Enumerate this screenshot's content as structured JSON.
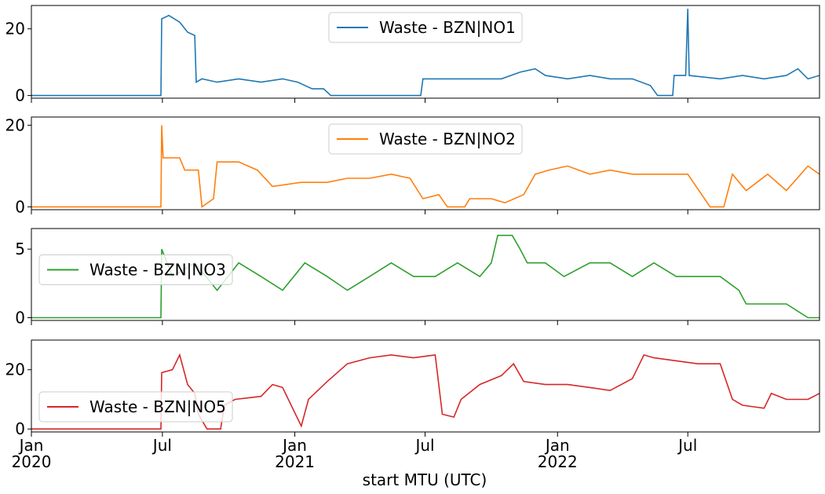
{
  "chart_data": {
    "type": "line",
    "xlabel": "start MTU (UTC)",
    "xlim": [
      "2020-01-01",
      "2022-12-31"
    ],
    "x_ticks": [
      {
        "date": "2020-01-01",
        "label": "Jan",
        "year": "2020"
      },
      {
        "date": "2020-07-01",
        "label": "Jul",
        "year": ""
      },
      {
        "date": "2021-01-01",
        "label": "Jan",
        "year": "2021"
      },
      {
        "date": "2021-07-01",
        "label": "Jul",
        "year": ""
      },
      {
        "date": "2022-01-01",
        "label": "Jan",
        "year": "2022"
      },
      {
        "date": "2022-07-01",
        "label": "Jul",
        "year": ""
      }
    ],
    "grid": false,
    "panels": [
      {
        "series_name": "Waste - BZN|NO1",
        "color": "#1f77b4",
        "ylim": [
          -0.8,
          27
        ],
        "yticks": [
          0,
          20
        ],
        "legend_loc": "upper center",
        "points": [
          [
            "2020-01-01",
            0
          ],
          [
            "2020-06-29",
            0
          ],
          [
            "2020-06-30",
            23
          ],
          [
            "2020-07-10",
            24
          ],
          [
            "2020-07-25",
            22
          ],
          [
            "2020-08-05",
            19
          ],
          [
            "2020-08-15",
            18
          ],
          [
            "2020-08-17",
            4
          ],
          [
            "2020-08-25",
            5
          ],
          [
            "2020-09-15",
            4
          ],
          [
            "2020-10-15",
            5
          ],
          [
            "2020-11-15",
            4
          ],
          [
            "2020-12-15",
            5
          ],
          [
            "2021-01-05",
            4
          ],
          [
            "2021-01-25",
            2
          ],
          [
            "2021-02-10",
            2
          ],
          [
            "2021-02-20",
            0
          ],
          [
            "2021-06-25",
            0
          ],
          [
            "2021-06-28",
            5
          ],
          [
            "2021-08-15",
            5
          ],
          [
            "2021-10-15",
            5
          ],
          [
            "2021-11-10",
            7
          ],
          [
            "2021-12-01",
            8
          ],
          [
            "2021-12-15",
            6
          ],
          [
            "2022-01-15",
            5
          ],
          [
            "2022-02-15",
            6
          ],
          [
            "2022-03-15",
            5
          ],
          [
            "2022-04-15",
            5
          ],
          [
            "2022-05-10",
            3
          ],
          [
            "2022-05-20",
            0
          ],
          [
            "2022-06-10",
            0
          ],
          [
            "2022-06-12",
            6
          ],
          [
            "2022-06-28",
            6
          ],
          [
            "2022-07-01",
            26
          ],
          [
            "2022-07-03",
            6
          ],
          [
            "2022-08-15",
            5
          ],
          [
            "2022-09-15",
            6
          ],
          [
            "2022-10-15",
            5
          ],
          [
            "2022-11-15",
            6
          ],
          [
            "2022-12-01",
            8
          ],
          [
            "2022-12-15",
            5
          ],
          [
            "2022-12-31",
            6
          ]
        ]
      },
      {
        "series_name": "Waste - BZN|NO2",
        "color": "#ff7f0e",
        "ylim": [
          -0.7,
          22
        ],
        "yticks": [
          0,
          20
        ],
        "legend_loc": "upper center",
        "points": [
          [
            "2020-01-01",
            0
          ],
          [
            "2020-06-29",
            0
          ],
          [
            "2020-06-30",
            20
          ],
          [
            "2020-07-02",
            12
          ],
          [
            "2020-07-25",
            12
          ],
          [
            "2020-08-01",
            9
          ],
          [
            "2020-08-20",
            9
          ],
          [
            "2020-08-25",
            0
          ],
          [
            "2020-09-10",
            2
          ],
          [
            "2020-09-15",
            11
          ],
          [
            "2020-10-15",
            11
          ],
          [
            "2020-11-10",
            9
          ],
          [
            "2020-12-01",
            5
          ],
          [
            "2021-01-10",
            6
          ],
          [
            "2021-02-15",
            6
          ],
          [
            "2021-03-15",
            7
          ],
          [
            "2021-04-15",
            7
          ],
          [
            "2021-05-15",
            8
          ],
          [
            "2021-06-10",
            7
          ],
          [
            "2021-06-28",
            2
          ],
          [
            "2021-07-20",
            3
          ],
          [
            "2021-08-01",
            0
          ],
          [
            "2021-08-25",
            0
          ],
          [
            "2021-09-01",
            2
          ],
          [
            "2021-10-01",
            2
          ],
          [
            "2021-10-20",
            1
          ],
          [
            "2021-11-15",
            3
          ],
          [
            "2021-12-01",
            8
          ],
          [
            "2021-12-20",
            9
          ],
          [
            "2022-01-15",
            10
          ],
          [
            "2022-02-15",
            8
          ],
          [
            "2022-03-15",
            9
          ],
          [
            "2022-04-15",
            8
          ],
          [
            "2022-05-15",
            8
          ],
          [
            "2022-06-15",
            8
          ],
          [
            "2022-07-01",
            8
          ],
          [
            "2022-08-01",
            0
          ],
          [
            "2022-08-20",
            0
          ],
          [
            "2022-09-01",
            8
          ],
          [
            "2022-09-20",
            4
          ],
          [
            "2022-10-20",
            8
          ],
          [
            "2022-11-15",
            4
          ],
          [
            "2022-12-15",
            10
          ],
          [
            "2022-12-31",
            8
          ]
        ]
      },
      {
        "series_name": "Waste - BZN|NO3",
        "color": "#2ca02c",
        "ylim": [
          -0.2,
          6.5
        ],
        "yticks": [
          0,
          5
        ],
        "legend_loc": "center left",
        "points": [
          [
            "2020-01-01",
            0
          ],
          [
            "2020-06-29",
            0
          ],
          [
            "2020-06-30",
            5
          ],
          [
            "2020-07-15",
            3
          ],
          [
            "2020-08-15",
            4
          ],
          [
            "2020-09-15",
            2
          ],
          [
            "2020-10-15",
            4
          ],
          [
            "2020-11-15",
            3
          ],
          [
            "2020-12-15",
            2
          ],
          [
            "2021-01-15",
            4
          ],
          [
            "2021-02-15",
            3
          ],
          [
            "2021-03-15",
            2
          ],
          [
            "2021-04-15",
            3
          ],
          [
            "2021-05-15",
            4
          ],
          [
            "2021-06-15",
            3
          ],
          [
            "2021-07-15",
            3
          ],
          [
            "2021-08-15",
            4
          ],
          [
            "2021-09-15",
            3
          ],
          [
            "2021-10-01",
            4
          ],
          [
            "2021-10-10",
            6
          ],
          [
            "2021-10-30",
            6
          ],
          [
            "2021-11-10",
            5
          ],
          [
            "2021-11-20",
            4
          ],
          [
            "2021-12-15",
            4
          ],
          [
            "2022-01-10",
            3
          ],
          [
            "2022-02-15",
            4
          ],
          [
            "2022-03-15",
            4
          ],
          [
            "2022-04-15",
            3
          ],
          [
            "2022-05-15",
            4
          ],
          [
            "2022-06-15",
            3
          ],
          [
            "2022-07-15",
            3
          ],
          [
            "2022-08-15",
            3
          ],
          [
            "2022-09-10",
            2
          ],
          [
            "2022-09-20",
            1
          ],
          [
            "2022-10-15",
            1
          ],
          [
            "2022-11-15",
            1
          ],
          [
            "2022-12-15",
            0
          ],
          [
            "2022-12-31",
            0
          ]
        ]
      },
      {
        "series_name": "Waste - BZN|NO5",
        "color": "#d62728",
        "ylim": [
          -1,
          30
        ],
        "yticks": [
          0,
          20
        ],
        "legend_loc": "lower left",
        "points": [
          [
            "2020-01-01",
            0
          ],
          [
            "2020-06-29",
            0
          ],
          [
            "2020-06-30",
            19
          ],
          [
            "2020-07-15",
            20
          ],
          [
            "2020-07-25",
            25
          ],
          [
            "2020-08-05",
            15
          ],
          [
            "2020-08-15",
            12
          ],
          [
            "2020-08-20",
            5
          ],
          [
            "2020-09-01",
            0
          ],
          [
            "2020-09-20",
            0
          ],
          [
            "2020-09-25",
            8
          ],
          [
            "2020-10-10",
            10
          ],
          [
            "2020-11-15",
            11
          ],
          [
            "2020-12-01",
            15
          ],
          [
            "2020-12-15",
            14
          ],
          [
            "2021-01-10",
            1
          ],
          [
            "2021-01-20",
            10
          ],
          [
            "2021-02-15",
            16
          ],
          [
            "2021-03-15",
            22
          ],
          [
            "2021-04-15",
            24
          ],
          [
            "2021-05-15",
            25
          ],
          [
            "2021-06-15",
            24
          ],
          [
            "2021-07-15",
            25
          ],
          [
            "2021-07-25",
            5
          ],
          [
            "2021-08-10",
            4
          ],
          [
            "2021-08-20",
            10
          ],
          [
            "2021-09-15",
            15
          ],
          [
            "2021-10-15",
            18
          ],
          [
            "2021-11-01",
            22
          ],
          [
            "2021-11-15",
            16
          ],
          [
            "2021-12-15",
            15
          ],
          [
            "2022-01-15",
            15
          ],
          [
            "2022-02-15",
            14
          ],
          [
            "2022-03-15",
            13
          ],
          [
            "2022-04-15",
            17
          ],
          [
            "2022-05-01",
            25
          ],
          [
            "2022-05-15",
            24
          ],
          [
            "2022-06-15",
            23
          ],
          [
            "2022-07-15",
            22
          ],
          [
            "2022-08-15",
            22
          ],
          [
            "2022-09-01",
            10
          ],
          [
            "2022-09-15",
            8
          ],
          [
            "2022-10-15",
            7
          ],
          [
            "2022-10-25",
            12
          ],
          [
            "2022-11-15",
            10
          ],
          [
            "2022-12-15",
            10
          ],
          [
            "2022-12-31",
            12
          ]
        ]
      }
    ]
  }
}
